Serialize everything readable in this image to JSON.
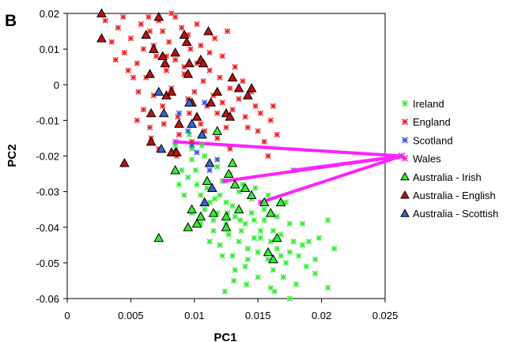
{
  "chart_data": {
    "type": "scatter",
    "panel_label": "B",
    "xlabel": "PC1",
    "ylabel": "PC2",
    "xlim": [
      0,
      0.025
    ],
    "ylim": [
      -0.06,
      0.02
    ],
    "xticks": [
      "0",
      "0.005",
      "0.01",
      "0.015",
      "0.02",
      "0.025"
    ],
    "yticks": [
      "0.02",
      "0.01",
      "0",
      "-0.01",
      "-0.02",
      "-0.03",
      "-0.04",
      "-0.05",
      "-0.06"
    ],
    "legend_position": "right",
    "series": [
      {
        "name": "Ireland",
        "marker": "asterisk",
        "color": "#33ee33",
        "points": [
          [
            0.0085,
            -0.017
          ],
          [
            0.009,
            -0.024
          ],
          [
            0.0095,
            -0.026
          ],
          [
            0.0098,
            -0.021
          ],
          [
            0.0102,
            -0.028
          ],
          [
            0.0105,
            -0.031
          ],
          [
            0.0108,
            -0.035
          ],
          [
            0.011,
            -0.029
          ],
          [
            0.0112,
            -0.033
          ],
          [
            0.0115,
            -0.038
          ],
          [
            0.0118,
            -0.036
          ],
          [
            0.012,
            -0.031
          ],
          [
            0.0122,
            -0.027
          ],
          [
            0.0125,
            -0.039
          ],
          [
            0.0127,
            -0.042
          ],
          [
            0.013,
            -0.034
          ],
          [
            0.0132,
            -0.037
          ],
          [
            0.0135,
            -0.044
          ],
          [
            0.0137,
            -0.041
          ],
          [
            0.014,
            -0.039
          ],
          [
            0.0142,
            -0.046
          ],
          [
            0.0145,
            -0.036
          ],
          [
            0.0147,
            -0.043
          ],
          [
            0.015,
            -0.047
          ],
          [
            0.0152,
            -0.041
          ],
          [
            0.0155,
            -0.038
          ],
          [
            0.0158,
            -0.049
          ],
          [
            0.016,
            -0.044
          ],
          [
            0.0162,
            -0.052
          ],
          [
            0.0165,
            -0.046
          ],
          [
            0.0168,
            -0.042
          ],
          [
            0.017,
            -0.054
          ],
          [
            0.0172,
            -0.05
          ],
          [
            0.0175,
            -0.047
          ],
          [
            0.0178,
            -0.044
          ],
          [
            0.018,
            -0.056
          ],
          [
            0.0185,
            -0.039
          ],
          [
            0.019,
            -0.044
          ],
          [
            0.0195,
            -0.049
          ],
          [
            0.0205,
            -0.038
          ],
          [
            0.021,
            -0.046
          ],
          [
            0.0205,
            -0.057
          ],
          [
            0.0195,
            -0.053
          ],
          [
            0.0175,
            -0.06
          ],
          [
            0.016,
            -0.057
          ],
          [
            0.015,
            -0.054
          ],
          [
            0.014,
            -0.051
          ],
          [
            0.013,
            -0.048
          ],
          [
            0.012,
            -0.045
          ],
          [
            0.0115,
            -0.041
          ],
          [
            0.0105,
            -0.039
          ],
          [
            0.0098,
            -0.036
          ],
          [
            0.0092,
            -0.031
          ],
          [
            0.0088,
            -0.028
          ],
          [
            0.0125,
            -0.033
          ],
          [
            0.0135,
            -0.03
          ],
          [
            0.0145,
            -0.032
          ],
          [
            0.0155,
            -0.035
          ],
          [
            0.0128,
            -0.025
          ],
          [
            0.0118,
            -0.023
          ],
          [
            0.0108,
            -0.02
          ],
          [
            0.0098,
            -0.018
          ],
          [
            0.0138,
            -0.028
          ],
          [
            0.0148,
            -0.029
          ],
          [
            0.0165,
            -0.037
          ],
          [
            0.0175,
            -0.039
          ],
          [
            0.0185,
            -0.045
          ],
          [
            0.0142,
            -0.049
          ],
          [
            0.0132,
            -0.052
          ],
          [
            0.0122,
            -0.048
          ],
          [
            0.0112,
            -0.044
          ],
          [
            0.0152,
            -0.043
          ],
          [
            0.0162,
            -0.041
          ],
          [
            0.0168,
            -0.048
          ],
          [
            0.0188,
            -0.051
          ],
          [
            0.0172,
            -0.033
          ],
          [
            0.0158,
            -0.031
          ],
          [
            0.0136,
            -0.038
          ],
          [
            0.0126,
            -0.036
          ],
          [
            0.0116,
            -0.032
          ],
          [
            0.0101,
            -0.024
          ],
          [
            0.0106,
            -0.017
          ],
          [
            0.0096,
            -0.014
          ],
          [
            0.0131,
            -0.055
          ],
          [
            0.0124,
            -0.058
          ],
          [
            0.0141,
            -0.056
          ],
          [
            0.0163,
            -0.058
          ],
          [
            0.0198,
            -0.043
          ],
          [
            0.0182,
            -0.048
          ],
          [
            0.0147,
            -0.038
          ]
        ]
      },
      {
        "name": "England",
        "marker": "asterisk",
        "color": "#ee2222",
        "points": [
          [
            0.003,
            0.018
          ],
          [
            0.0035,
            0.012
          ],
          [
            0.004,
            0.016
          ],
          [
            0.0045,
            0.009
          ],
          [
            0.005,
            0.013
          ],
          [
            0.0055,
            0.006
          ],
          [
            0.006,
            0.01
          ],
          [
            0.0062,
            0.002
          ],
          [
            0.0065,
            0.015
          ],
          [
            0.0068,
            -0.003
          ],
          [
            0.007,
            0.008
          ],
          [
            0.0072,
            0.018
          ],
          [
            0.0075,
            -0.006
          ],
          [
            0.0078,
            0.004
          ],
          [
            0.008,
            0.012
          ],
          [
            0.0082,
            -0.001
          ],
          [
            0.0085,
            0.007
          ],
          [
            0.0087,
            -0.009
          ],
          [
            0.009,
            0.016
          ],
          [
            0.0092,
            0.003
          ],
          [
            0.0095,
            -0.004
          ],
          [
            0.0097,
            0.01
          ],
          [
            0.01,
            -0.002
          ],
          [
            0.0102,
            0.006
          ],
          [
            0.0105,
            -0.011
          ],
          [
            0.0107,
            0.001
          ],
          [
            0.011,
            -0.006
          ],
          [
            0.0112,
            0.004
          ],
          [
            0.0115,
            -0.003
          ],
          [
            0.0118,
            -0.008
          ],
          [
            0.012,
            0.002
          ],
          [
            0.0122,
            -0.005
          ],
          [
            0.0125,
            -0.012
          ],
          [
            0.0128,
            -0.001
          ],
          [
            0.013,
            -0.007
          ],
          [
            0.0135,
            -0.004
          ],
          [
            0.014,
            -0.009
          ],
          [
            0.0145,
            -0.002
          ],
          [
            0.015,
            -0.013
          ],
          [
            0.0155,
            -0.016
          ],
          [
            0.016,
            -0.01
          ],
          [
            0.0165,
            -0.014
          ],
          [
            0.006,
            -0.007
          ],
          [
            0.0055,
            -0.01
          ],
          [
            0.0065,
            -0.012
          ],
          [
            0.0075,
            0.015
          ],
          [
            0.0085,
            0.019
          ],
          [
            0.0095,
            0.014
          ],
          [
            0.0105,
            0.011
          ],
          [
            0.0088,
            -0.014
          ],
          [
            0.0098,
            -0.016
          ],
          [
            0.0108,
            -0.013
          ],
          [
            0.0118,
            -0.015
          ],
          [
            0.0128,
            -0.018
          ],
          [
            0.0052,
            0.002
          ],
          [
            0.0058,
            0.017
          ],
          [
            0.0068,
            0.011
          ],
          [
            0.0078,
            0.008
          ],
          [
            0.0092,
            0.005
          ],
          [
            0.0112,
            0.009
          ],
          [
            0.0132,
            0.005
          ],
          [
            0.0148,
            -0.006
          ],
          [
            0.0158,
            -0.02
          ],
          [
            0.0138,
            0.001
          ],
          [
            0.0122,
            0.008
          ],
          [
            0.0066,
            -0.015
          ],
          [
            0.0076,
            -0.011
          ],
          [
            0.0096,
            -0.008
          ],
          [
            0.0048,
            0.004
          ],
          [
            0.0038,
            0.007
          ],
          [
            0.0056,
            -0.002
          ],
          [
            0.0082,
            0.02
          ],
          [
            0.0102,
            0.017
          ],
          [
            0.0072,
            -0.018
          ],
          [
            0.0086,
            -0.02
          ],
          [
            0.0142,
            -0.012
          ],
          [
            0.0152,
            -0.008
          ],
          [
            0.0162,
            -0.006
          ],
          [
            0.0116,
            0.013
          ],
          [
            0.0126,
            0.015
          ],
          [
            0.0064,
            0.019
          ],
          [
            0.0044,
            0.019
          ]
        ]
      },
      {
        "name": "Scotland",
        "marker": "asterisk",
        "color": "#3355ee",
        "points": [
          [
            0.0088,
            -0.008
          ],
          [
            0.0095,
            -0.013
          ],
          [
            0.0102,
            -0.019
          ],
          [
            0.0112,
            -0.024
          ],
          [
            0.0108,
            -0.005
          ],
          [
            0.0098,
            -0.017
          ],
          [
            0.0118,
            -0.021
          ]
        ]
      },
      {
        "name": "Wales",
        "marker": "asterisk",
        "color": "#ee22ee",
        "points": [
          [
            0.0085,
            -0.016
          ],
          [
            0.0178,
            -0.024
          ],
          [
            0.0152,
            -0.033
          ],
          [
            0.0124,
            -0.027
          ]
        ]
      },
      {
        "name": "Australia - Irish",
        "marker": "triangle",
        "color": "#33ee33",
        "points": [
          [
            0.0072,
            -0.043
          ],
          [
            0.0085,
            -0.019
          ],
          [
            0.0085,
            -0.024
          ],
          [
            0.0095,
            -0.04
          ],
          [
            0.0098,
            -0.035
          ],
          [
            0.0102,
            -0.039
          ],
          [
            0.0105,
            -0.037
          ],
          [
            0.011,
            -0.027
          ],
          [
            0.0115,
            -0.036
          ],
          [
            0.0118,
            -0.013
          ],
          [
            0.0125,
            -0.037
          ],
          [
            0.0125,
            -0.04
          ],
          [
            0.0127,
            -0.025
          ],
          [
            0.013,
            -0.022
          ],
          [
            0.0132,
            -0.028
          ],
          [
            0.0135,
            -0.035
          ],
          [
            0.014,
            -0.029
          ],
          [
            0.0145,
            -0.031
          ],
          [
            0.0155,
            -0.033
          ],
          [
            0.016,
            -0.036
          ],
          [
            0.0165,
            -0.043
          ],
          [
            0.0168,
            -0.033
          ],
          [
            0.0162,
            -0.049
          ],
          [
            0.0158,
            -0.047
          ]
        ]
      },
      {
        "name": "Australia - English",
        "marker": "triangle",
        "color": "#bb1111",
        "points": [
          [
            0.0027,
            0.02
          ],
          [
            0.0027,
            0.013
          ],
          [
            0.0045,
            -0.022
          ],
          [
            0.0062,
            0.014
          ],
          [
            0.0065,
            0.003
          ],
          [
            0.0066,
            -0.008
          ],
          [
            0.0068,
            0.01
          ],
          [
            0.0072,
            0.019
          ],
          [
            0.0075,
            0.008
          ],
          [
            0.0077,
            0.006
          ],
          [
            0.0078,
            -0.003
          ],
          [
            0.0082,
            -0.002
          ],
          [
            0.0085,
            0.009
          ],
          [
            0.0088,
            -0.011
          ],
          [
            0.0092,
            0.014
          ],
          [
            0.0095,
            0.003
          ],
          [
            0.0096,
            0.006
          ],
          [
            0.0098,
            -0.005
          ],
          [
            0.0102,
            -0.009
          ],
          [
            0.0105,
            0.007
          ],
          [
            0.0107,
            0.006
          ],
          [
            0.0111,
            0.015
          ],
          [
            0.0113,
            -0.005
          ],
          [
            0.0118,
            -0.002
          ],
          [
            0.0125,
            -0.008
          ],
          [
            0.0128,
            -0.009
          ],
          [
            0.013,
            0.002
          ],
          [
            0.0135,
            -0.001
          ],
          [
            0.0142,
            -0.003
          ],
          [
            0.0145,
            -0.001
          ],
          [
            0.0066,
            -0.016
          ],
          [
            0.0082,
            -0.019
          ],
          [
            0.0086,
            -0.019
          ],
          [
            0.0094,
            0.012
          ]
        ]
      },
      {
        "name": "Australia - Scottish",
        "marker": "triangle",
        "color": "#3366cc",
        "points": [
          [
            0.0072,
            -0.002
          ],
          [
            0.0076,
            -0.008
          ],
          [
            0.0074,
            -0.018
          ],
          [
            0.0096,
            -0.005
          ],
          [
            0.0106,
            -0.014
          ],
          [
            0.0112,
            -0.022
          ],
          [
            0.0108,
            -0.033
          ],
          [
            0.0114,
            -0.029
          ],
          [
            0.0098,
            -0.011
          ]
        ]
      }
    ],
    "hub_point": [
      0.0263,
      -0.02
    ]
  }
}
